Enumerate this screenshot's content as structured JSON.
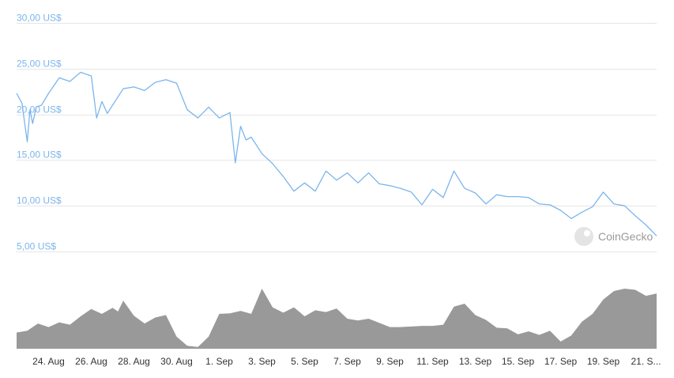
{
  "chart_data": [
    {
      "type": "line",
      "title": "",
      "xlabel": "",
      "ylabel": "",
      "y_ticks": [
        "5,00 US$",
        "10,00 US$",
        "15,00 US$",
        "20,00 US$",
        "25,00 US$",
        "30,00 US$"
      ],
      "ylim": [
        5,
        30
      ],
      "x_ticks": [
        "24. Aug",
        "26. Aug",
        "28. Aug",
        "30. Aug",
        "1. Sep",
        "3. Sep",
        "5. Sep",
        "7. Sep",
        "9. Sep",
        "11. Sep",
        "13. Sep",
        "15. Sep",
        "17. Sep",
        "19. Sep",
        "21. S..."
      ],
      "xlim": [
        "2021-08-22T12:00",
        "2021-09-21T12:00"
      ],
      "grid": true,
      "line_color": "#7cb5ec",
      "series": [
        {
          "x": [
            "2021-08-22T12:00",
            "2021-08-22T18:00",
            "2021-08-23T00:00",
            "2021-08-23T03:00",
            "2021-08-23T06:00",
            "2021-08-23T10:00",
            "2021-08-23T16:00",
            "2021-08-24T00:00",
            "2021-08-24T12:00",
            "2021-08-25T00:00",
            "2021-08-25T12:00",
            "2021-08-26T00:00",
            "2021-08-26T06:00",
            "2021-08-26T12:00",
            "2021-08-26T18:00",
            "2021-08-27T00:00",
            "2021-08-27T12:00",
            "2021-08-28T00:00",
            "2021-08-28T12:00",
            "2021-08-29T00:00",
            "2021-08-29T12:00",
            "2021-08-30T00:00",
            "2021-08-30T12:00",
            "2021-08-31T00:00",
            "2021-08-31T12:00",
            "2021-09-01T00:00",
            "2021-09-01T12:00",
            "2021-09-01T18:00",
            "2021-09-02T00:00",
            "2021-09-02T06:00",
            "2021-09-02T12:00",
            "2021-09-03T00:00",
            "2021-09-03T12:00",
            "2021-09-04T00:00",
            "2021-09-04T12:00",
            "2021-09-05T00:00",
            "2021-09-05T12:00",
            "2021-09-06T00:00",
            "2021-09-06T12:00",
            "2021-09-07T00:00",
            "2021-09-07T12:00",
            "2021-09-08T00:00",
            "2021-09-08T12:00",
            "2021-09-09T00:00",
            "2021-09-09T12:00",
            "2021-09-10T00:00",
            "2021-09-10T12:00",
            "2021-09-11T00:00",
            "2021-09-11T12:00",
            "2021-09-12T00:00",
            "2021-09-12T12:00",
            "2021-09-13T00:00",
            "2021-09-13T12:00",
            "2021-09-14T00:00",
            "2021-09-14T12:00",
            "2021-09-15T00:00",
            "2021-09-15T12:00",
            "2021-09-16T00:00",
            "2021-09-16T12:00",
            "2021-09-17T00:00",
            "2021-09-17T12:00",
            "2021-09-18T00:00",
            "2021-09-18T12:00",
            "2021-09-19T00:00",
            "2021-09-19T12:00",
            "2021-09-20T00:00",
            "2021-09-20T12:00",
            "2021-09-21T00:00",
            "2021-09-21T12:00"
          ],
          "y": [
            22.3,
            21.2,
            17.0,
            20.5,
            19.0,
            20.8,
            21.0,
            22.3,
            24.0,
            23.6,
            24.6,
            24.2,
            19.6,
            21.4,
            20.1,
            21.0,
            22.8,
            23.0,
            22.6,
            23.5,
            23.8,
            23.4,
            20.5,
            19.6,
            20.8,
            19.6,
            20.2,
            14.7,
            18.7,
            17.2,
            17.5,
            15.7,
            14.6,
            13.2,
            11.6,
            12.5,
            11.6,
            13.8,
            12.8,
            13.6,
            12.5,
            13.6,
            12.4,
            12.2,
            11.9,
            11.5,
            10.1,
            11.8,
            10.9,
            13.8,
            11.9,
            11.4,
            10.2,
            11.2,
            11.0,
            11.0,
            10.9,
            10.2,
            10.1,
            9.5,
            8.6,
            9.3,
            9.9,
            11.5,
            10.2,
            10.0,
            8.9,
            7.9,
            6.7
          ]
        }
      ],
      "watermark": "CoinGecko"
    },
    {
      "type": "area",
      "title": "",
      "fill_color": "#999999",
      "ylim": [
        0,
        100
      ],
      "x": [
        "2021-08-22T12:00",
        "2021-08-23T00:00",
        "2021-08-23T12:00",
        "2021-08-24T00:00",
        "2021-08-24T12:00",
        "2021-08-25T00:00",
        "2021-08-25T12:00",
        "2021-08-26T00:00",
        "2021-08-26T12:00",
        "2021-08-27T00:00",
        "2021-08-27T06:00",
        "2021-08-27T12:00",
        "2021-08-28T00:00",
        "2021-08-28T12:00",
        "2021-08-29T00:00",
        "2021-08-29T12:00",
        "2021-08-30T00:00",
        "2021-08-30T12:00",
        "2021-08-31T00:00",
        "2021-08-31T12:00",
        "2021-09-01T00:00",
        "2021-09-01T12:00",
        "2021-09-02T00:00",
        "2021-09-02T12:00",
        "2021-09-03T00:00",
        "2021-09-03T12:00",
        "2021-09-04T00:00",
        "2021-09-04T12:00",
        "2021-09-05T00:00",
        "2021-09-05T12:00",
        "2021-09-06T00:00",
        "2021-09-06T12:00",
        "2021-09-07T00:00",
        "2021-09-07T12:00",
        "2021-09-08T00:00",
        "2021-09-08T12:00",
        "2021-09-09T00:00",
        "2021-09-09T12:00",
        "2021-09-10T00:00",
        "2021-09-10T12:00",
        "2021-09-11T00:00",
        "2021-09-11T12:00",
        "2021-09-12T00:00",
        "2021-09-12T12:00",
        "2021-09-13T00:00",
        "2021-09-13T12:00",
        "2021-09-14T00:00",
        "2021-09-14T12:00",
        "2021-09-15T00:00",
        "2021-09-15T12:00",
        "2021-09-16T00:00",
        "2021-09-16T12:00",
        "2021-09-17T00:00",
        "2021-09-17T12:00",
        "2021-09-18T00:00",
        "2021-09-18T12:00",
        "2021-09-19T00:00",
        "2021-09-19T12:00",
        "2021-09-20T00:00",
        "2021-09-20T12:00",
        "2021-09-21T00:00",
        "2021-09-21T12:00"
      ],
      "values": [
        27,
        30,
        42,
        36,
        44,
        40,
        54,
        66,
        58,
        68,
        62,
        80,
        55,
        42,
        52,
        56,
        20,
        5,
        3,
        20,
        58,
        59,
        63,
        58,
        100,
        69,
        60,
        69,
        54,
        64,
        61,
        67,
        50,
        47,
        50,
        43,
        36,
        36,
        37,
        38,
        38,
        40,
        70,
        75,
        56,
        48,
        35,
        34,
        24,
        29,
        23,
        30,
        12,
        22,
        45,
        58,
        82,
        96,
        100,
        98,
        88,
        92
      ]
    }
  ]
}
